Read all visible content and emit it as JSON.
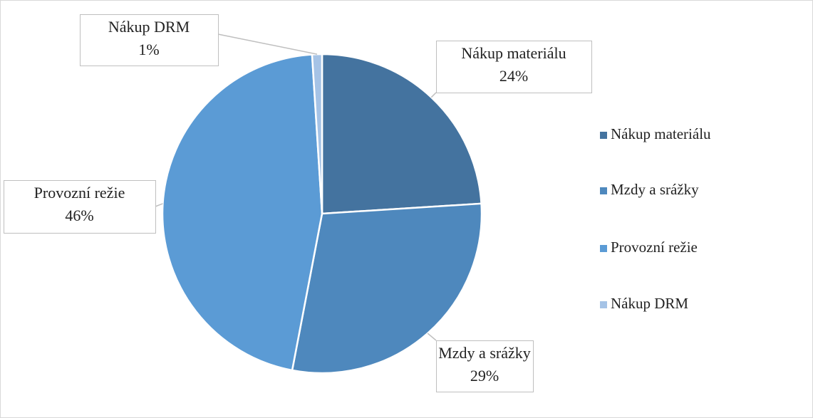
{
  "chart_data": {
    "type": "pie",
    "categories": [
      "Nákup materiálu",
      "Mzdy a srážky",
      "Provozní režie",
      "Nákup DRM"
    ],
    "values": [
      24,
      29,
      46,
      1
    ],
    "value_labels": [
      "24%",
      "29%",
      "46%",
      "1%"
    ],
    "colors": [
      "#44739f",
      "#4e88bd",
      "#5b9bd5",
      "#a5c3e6"
    ],
    "legend": "right"
  }
}
